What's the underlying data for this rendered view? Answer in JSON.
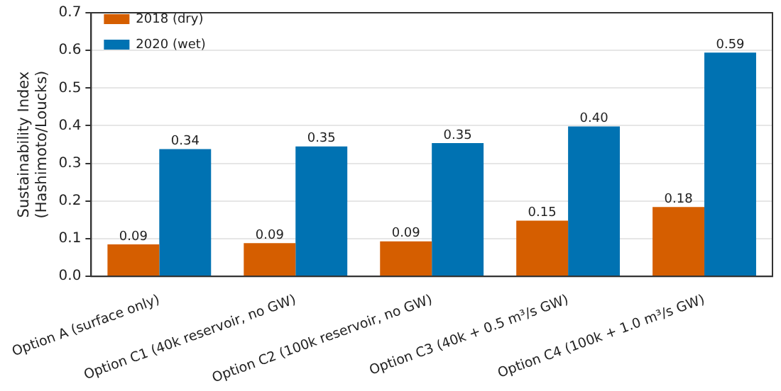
{
  "chart_data": {
    "type": "bar",
    "ylabel": "Sustainability Index\n(Hashimoto/Loucks)",
    "categories": [
      "Option A (surface only)",
      "Option C1 (40k reservoir, no GW)",
      "Option C2 (100k reservoir, no GW)",
      "Option C3 (40k + 0.5 m³/s GW)",
      "Option C4 (100k + 1.0 m³/s GW)"
    ],
    "series": [
      {
        "name": "2018 (dry)",
        "color": "#d55e00",
        "values": [
          0.085,
          0.088,
          0.093,
          0.148,
          0.184
        ],
        "value_labels": [
          "0.09",
          "0.09",
          "0.09",
          "0.15",
          "0.18"
        ]
      },
      {
        "name": "2020 (wet)",
        "color": "#0072b2",
        "values": [
          0.338,
          0.345,
          0.354,
          0.398,
          0.594
        ],
        "value_labels": [
          "0.34",
          "0.35",
          "0.35",
          "0.40",
          "0.59"
        ]
      }
    ],
    "ylim": [
      0,
      0.7
    ],
    "yticks": [
      {
        "value": 0,
        "label": "0.0"
      },
      0.1,
      0.2,
      0.3,
      0.4,
      0.5,
      0.6,
      0.7
    ],
    "grid": "y",
    "legend": "top left"
  }
}
